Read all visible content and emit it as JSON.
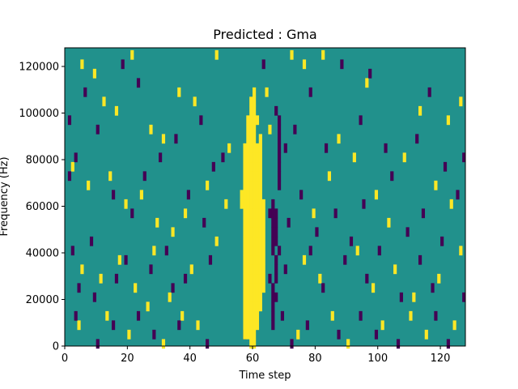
{
  "chart_data": {
    "type": "heatmap",
    "title": "Predicted : Gma",
    "xlabel": "Time step",
    "ylabel": "Frequency (Hz)",
    "xlim": [
      0,
      128
    ],
    "ylim": [
      0,
      128000
    ],
    "x_ticks": [
      0,
      20,
      40,
      60,
      80,
      100,
      120
    ],
    "y_ticks": [
      0,
      20000,
      40000,
      60000,
      80000,
      100000,
      120000
    ],
    "x_tick_labels": [
      "0",
      "20",
      "40",
      "60",
      "80",
      "100",
      "120"
    ],
    "y_tick_labels": [
      "0",
      "20000",
      "40000",
      "60000",
      "80000",
      "100000",
      "120000"
    ],
    "n_freq_bins": 32,
    "colormap": "viridis",
    "colors": {
      "low": "#440154",
      "mid": "#21918c",
      "high": "#fde725"
    },
    "background_value": 0.5,
    "grid": false,
    "high_cells": [
      [
        5,
        121000
      ],
      [
        9,
        117000
      ],
      [
        12,
        105000
      ],
      [
        16,
        101000
      ],
      [
        21,
        125000
      ],
      [
        27,
        93000
      ],
      [
        31,
        89000
      ],
      [
        36,
        109000
      ],
      [
        41,
        105000
      ],
      [
        48,
        125000
      ],
      [
        52,
        85000
      ],
      [
        61,
        97000
      ],
      [
        64,
        109000
      ],
      [
        65,
        93000
      ],
      [
        72,
        125000
      ],
      [
        76,
        121000
      ],
      [
        82,
        125000
      ],
      [
        87,
        89000
      ],
      [
        96,
        113000
      ],
      [
        108,
        81000
      ],
      [
        113,
        101000
      ],
      [
        122,
        97000
      ],
      [
        126,
        105000
      ],
      [
        2,
        77000
      ],
      [
        7,
        69000
      ],
      [
        14,
        73000
      ],
      [
        19,
        61000
      ],
      [
        24,
        65000
      ],
      [
        29,
        53000
      ],
      [
        34,
        49000
      ],
      [
        38,
        57000
      ],
      [
        45,
        69000
      ],
      [
        51,
        61000
      ],
      [
        79,
        57000
      ],
      [
        84,
        73000
      ],
      [
        92,
        81000
      ],
      [
        99,
        65000
      ],
      [
        103,
        53000
      ],
      [
        118,
        69000
      ],
      [
        123,
        61000
      ],
      [
        5,
        33000
      ],
      [
        11,
        29000
      ],
      [
        17,
        37000
      ],
      [
        22,
        25000
      ],
      [
        28,
        41000
      ],
      [
        33,
        21000
      ],
      [
        40,
        33000
      ],
      [
        48,
        45000
      ],
      [
        76,
        37000
      ],
      [
        81,
        29000
      ],
      [
        93,
        41000
      ],
      [
        98,
        25000
      ],
      [
        105,
        33000
      ],
      [
        111,
        21000
      ],
      [
        119,
        29000
      ],
      [
        126,
        41000
      ],
      [
        4,
        9000
      ],
      [
        13,
        13000
      ],
      [
        20,
        5000
      ],
      [
        26,
        17000
      ],
      [
        31,
        1000
      ],
      [
        37,
        13000
      ],
      [
        42,
        9000
      ],
      [
        74,
        5000
      ],
      [
        85,
        13000
      ],
      [
        90,
        1000
      ],
      [
        101,
        9000
      ],
      [
        110,
        13000
      ],
      [
        115,
        5000
      ],
      [
        124,
        9000
      ]
    ],
    "low_cells": [
      [
        1,
        97000
      ],
      [
        3,
        81000
      ],
      [
        6,
        109000
      ],
      [
        10,
        93000
      ],
      [
        18,
        121000
      ],
      [
        23,
        113000
      ],
      [
        30,
        81000
      ],
      [
        35,
        89000
      ],
      [
        43,
        97000
      ],
      [
        50,
        81000
      ],
      [
        63,
        121000
      ],
      [
        67,
        101000
      ],
      [
        70,
        85000
      ],
      [
        73,
        93000
      ],
      [
        78,
        109000
      ],
      [
        83,
        85000
      ],
      [
        88,
        121000
      ],
      [
        94,
        97000
      ],
      [
        97,
        117000
      ],
      [
        102,
        85000
      ],
      [
        112,
        89000
      ],
      [
        116,
        109000
      ],
      [
        121,
        77000
      ],
      [
        127,
        81000
      ],
      [
        1,
        73000
      ],
      [
        8,
        45000
      ],
      [
        15,
        65000
      ],
      [
        21,
        57000
      ],
      [
        25,
        73000
      ],
      [
        32,
        41000
      ],
      [
        39,
        65000
      ],
      [
        44,
        53000
      ],
      [
        47,
        77000
      ],
      [
        65,
        57000
      ],
      [
        68,
        41000
      ],
      [
        71,
        53000
      ],
      [
        75,
        65000
      ],
      [
        80,
        49000
      ],
      [
        86,
        57000
      ],
      [
        91,
        45000
      ],
      [
        95,
        61000
      ],
      [
        104,
        73000
      ],
      [
        109,
        49000
      ],
      [
        114,
        57000
      ],
      [
        120,
        45000
      ],
      [
        125,
        65000
      ],
      [
        2,
        41000
      ],
      [
        4,
        25000
      ],
      [
        9,
        21000
      ],
      [
        16,
        29000
      ],
      [
        19,
        37000
      ],
      [
        27,
        33000
      ],
      [
        34,
        25000
      ],
      [
        38,
        29000
      ],
      [
        46,
        37000
      ],
      [
        65,
        29000
      ],
      [
        67,
        21000
      ],
      [
        70,
        33000
      ],
      [
        78,
        41000
      ],
      [
        82,
        25000
      ],
      [
        89,
        37000
      ],
      [
        96,
        29000
      ],
      [
        100,
        41000
      ],
      [
        107,
        21000
      ],
      [
        113,
        37000
      ],
      [
        117,
        25000
      ],
      [
        127,
        21000
      ],
      [
        3,
        13000
      ],
      [
        10,
        1000
      ],
      [
        15,
        9000
      ],
      [
        23,
        13000
      ],
      [
        28,
        5000
      ],
      [
        36,
        9000
      ],
      [
        45,
        1000
      ],
      [
        57,
        5000
      ],
      [
        69,
        13000
      ],
      [
        72,
        1000
      ],
      [
        77,
        9000
      ],
      [
        87,
        5000
      ],
      [
        94,
        13000
      ],
      [
        99,
        5000
      ],
      [
        106,
        1000
      ],
      [
        118,
        13000
      ],
      [
        122,
        1000
      ]
    ],
    "column_bands": [
      [
        56,
        61000,
        67000
      ],
      [
        57,
        5000,
        85000
      ],
      [
        58,
        5000,
        97000
      ],
      [
        59,
        1000,
        105000
      ],
      [
        60,
        1000,
        109000
      ],
      [
        61,
        9000,
        85000
      ],
      [
        62,
        17000,
        89000
      ],
      [
        63,
        25000,
        61000
      ]
    ],
    "dark_bands": [
      [
        66,
        9000,
        25000
      ],
      [
        66,
        41000,
        61000
      ],
      [
        67,
        45000,
        57000
      ],
      [
        67,
        29000,
        37000
      ],
      [
        68,
        69000,
        97000
      ]
    ]
  }
}
